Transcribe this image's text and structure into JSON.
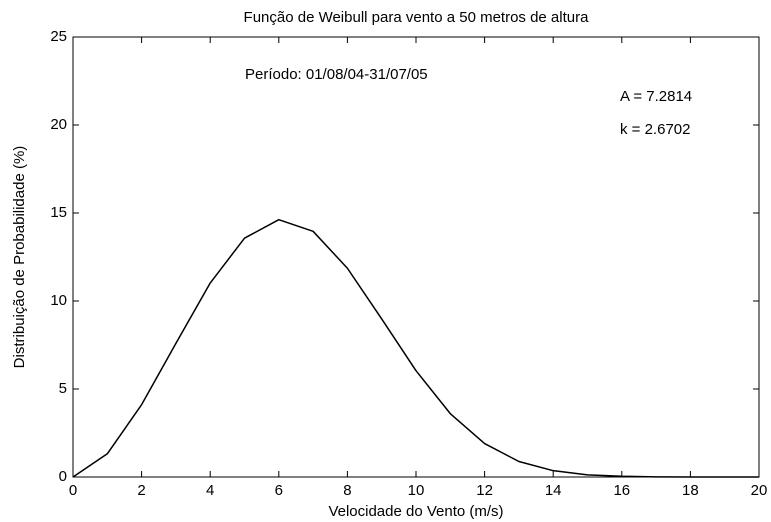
{
  "chart_data": {
    "type": "line",
    "title": "Função de Weibull para vento a 50 metros de altura",
    "xlabel": "Velocidade do Vento (m/s)",
    "ylabel": "Distribuição de Probabilidade (%)",
    "annotations": [
      "Período: 01/08/04-31/07/05",
      "A = 7.2814",
      "k = 2.6702"
    ],
    "x": [
      0,
      1,
      2,
      3,
      4,
      5,
      6,
      7,
      8,
      9,
      10,
      11,
      12,
      13,
      14,
      15,
      16,
      17,
      18,
      19,
      20
    ],
    "series": [
      {
        "name": "Weibull",
        "color": "#000000",
        "values": [
          0,
          1.32,
          4.11,
          7.59,
          11.02,
          13.57,
          14.62,
          13.96,
          11.86,
          8.98,
          6.04,
          3.6,
          1.9,
          0.88,
          0.36,
          0.12,
          0.04,
          0.01,
          0,
          0,
          0
        ]
      }
    ],
    "xlim": [
      0,
      20
    ],
    "xticks": [
      0,
      2,
      4,
      6,
      8,
      10,
      12,
      14,
      16,
      18,
      20
    ],
    "ylim": [
      0,
      25
    ],
    "yticks": [
      0,
      5,
      10,
      15,
      20,
      25
    ]
  }
}
